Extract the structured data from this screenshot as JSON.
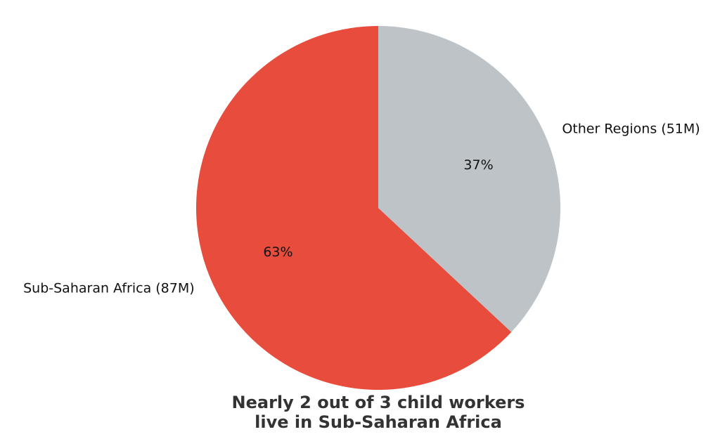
{
  "chart_data": {
    "type": "pie",
    "title_lines": [
      "Nearly 2 out of 3 child workers",
      "live in Sub-Saharan Africa"
    ],
    "slices": [
      {
        "label": "Sub-Saharan Africa (87M)",
        "value": 87,
        "percent_label": "63%",
        "color": "#e74c3c"
      },
      {
        "label": "Other Regions (51M)",
        "value": 51,
        "percent_label": "37%",
        "color": "#bdc3c7"
      }
    ],
    "start_angle_deg": 90,
    "direction": "counterclockwise",
    "legend": "none"
  }
}
